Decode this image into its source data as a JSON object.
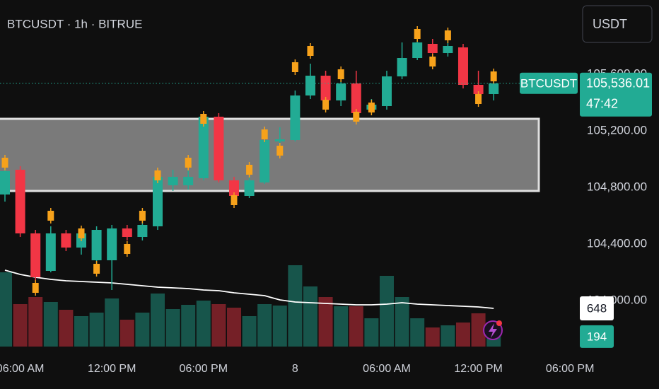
{
  "chart_data": {
    "type": "candlestick",
    "title": "BTCUSDT · 1h · BITRUE",
    "button": "USDT",
    "x": [
      0,
      1,
      2,
      3,
      4,
      5,
      6,
      7,
      8,
      9,
      10,
      11,
      12,
      13,
      14,
      15,
      16,
      17,
      18,
      19,
      20,
      21,
      22,
      23,
      24,
      25,
      26,
      27,
      28,
      29,
      30,
      31,
      32
    ],
    "xlim": [
      -0.324,
      37.64
    ],
    "xticks": [
      {
        "value": 1,
        "label": "06:00 AM"
      },
      {
        "value": 7,
        "label": "12:00 PM"
      },
      {
        "value": 13,
        "label": "06:00 PM"
      },
      {
        "value": 19,
        "label": "8"
      },
      {
        "value": 25,
        "label": "06:00 AM"
      },
      {
        "value": 31,
        "label": "12:00 PM"
      },
      {
        "value": 37,
        "label": "06:00 PM"
      }
    ],
    "open": [
      104750,
      104925,
      104475,
      104210,
      104475,
      104375,
      104285,
      104285,
      104510,
      104450,
      104525,
      104815,
      104815,
      104865,
      105300,
      104850,
      104740,
      104835,
      105125,
      105135,
      105450,
      105590,
      105415,
      105535,
      105350,
      105375,
      105585,
      105715,
      105815,
      105750,
      105790,
      105525,
      105460
    ],
    "high": [
      104965,
      104950,
      104500,
      104525,
      104500,
      104500,
      104525,
      104535,
      104535,
      104625,
      104900,
      104925,
      104925,
      105325,
      105325,
      104875,
      104875,
      105175,
      105225,
      105485,
      105675,
      105625,
      105575,
      105625,
      105425,
      105625,
      105825,
      105900,
      105850,
      105850,
      105815,
      105625,
      105575
    ],
    "low": [
      104700,
      104450,
      104125,
      104200,
      104350,
      104325,
      104250,
      104075,
      104425,
      104425,
      104500,
      104775,
      104785,
      104850,
      104835,
      104725,
      104725,
      104825,
      105025,
      105125,
      105425,
      105400,
      105375,
      105300,
      105325,
      105350,
      105565,
      105700,
      105675,
      105725,
      105500,
      105425,
      105415
    ],
    "close": [
      104915,
      104475,
      104165,
      104475,
      104375,
      104475,
      104500,
      104510,
      104450,
      104535,
      104875,
      104875,
      104875,
      105300,
      104850,
      104740,
      104850,
      105135,
      105140,
      105450,
      105590,
      105415,
      105535,
      105325,
      105385,
      105585,
      105715,
      105825,
      105750,
      105800,
      105525,
      105460,
      105536.01
    ],
    "up_color": "#22ab94",
    "down_color": "#f23645",
    "ylim": [
      103675,
      106125
    ],
    "yticks": [
      {
        "value": 104000,
        "label": "104,000.00"
      },
      {
        "value": 104400,
        "label": "104,400.00"
      },
      {
        "value": 104800,
        "label": "104,800.00"
      },
      {
        "value": 105200,
        "label": "105,200.00"
      },
      {
        "value": 105600,
        "label": "105,600.00"
      }
    ],
    "grid": false,
    "zone": [
      104775,
      105285
    ],
    "markers": {
      "color": "#f7a21b",
      "x": [
        0,
        2,
        3,
        5,
        6,
        8,
        9,
        10,
        12,
        13,
        15,
        16,
        17,
        18,
        19,
        20,
        21,
        22,
        23,
        24,
        27,
        28,
        29,
        31,
        32
      ],
      "values": [
        104975,
        104090,
        104600,
        104475,
        104225,
        104365,
        104600,
        104885,
        104975,
        105285,
        104710,
        104925,
        105175,
        105060,
        105650,
        105765,
        105385,
        105600,
        105300,
        105365,
        105885,
        105690,
        105875,
        105425,
        105585
      ]
    },
    "last": {
      "name": "BTCUSDT",
      "value": 105536.01,
      "label": "105,536.01",
      "countdown": "47:42"
    },
    "volume": {
      "values": [
        1260,
        720,
        840,
        756,
        624,
        516,
        576,
        816,
        456,
        576,
        900,
        636,
        708,
        780,
        720,
        660,
        516,
        720,
        696,
        1380,
        1020,
        840,
        684,
        684,
        480,
        1200,
        840,
        480,
        324,
        360,
        408,
        564,
        194
      ]
    },
    "volume_ma": {
      "color": "#ffffff",
      "values": [
        1296,
        1224,
        1176,
        1140,
        1116,
        1104,
        1092,
        1080,
        1056,
        1032,
        1008,
        996,
        984,
        960,
        948,
        912,
        888,
        864,
        792,
        756,
        744,
        732,
        720,
        708,
        708,
        720,
        744,
        720,
        708,
        696,
        684,
        672,
        648
      ]
    },
    "y2lim": [
      0,
      5880
    ]
  }
}
